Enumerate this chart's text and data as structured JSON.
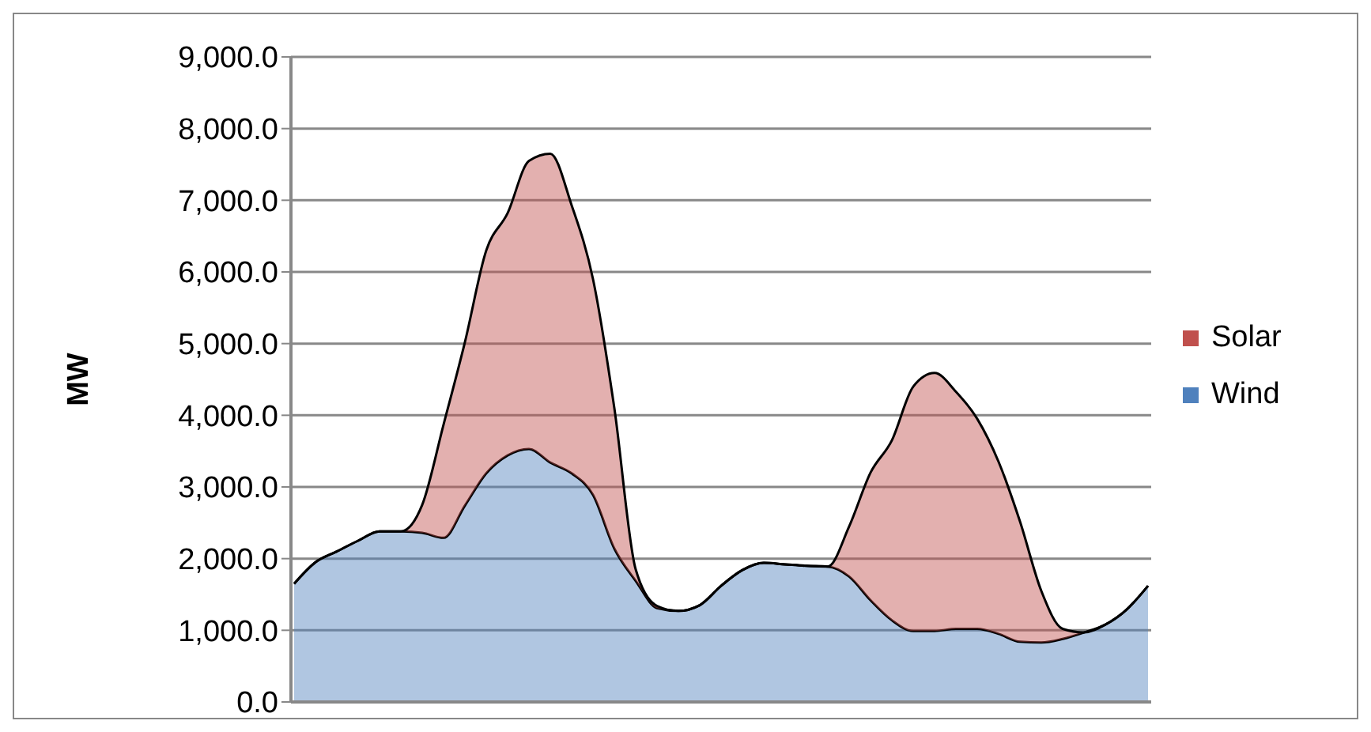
{
  "chart_data": {
    "type": "area",
    "stacked": true,
    "ylabel": "MW",
    "categories": [
      null,
      null,
      null,
      null,
      null,
      null,
      null,
      null,
      null,
      null,
      null,
      null,
      null,
      null,
      null,
      null,
      null,
      null,
      null,
      null,
      null,
      null,
      null,
      null,
      null,
      null,
      null,
      null,
      null,
      null,
      null,
      null,
      null,
      null,
      null,
      null,
      null,
      null,
      null,
      null,
      null
    ],
    "series": [
      {
        "name": "Wind",
        "color": "#4f81bd",
        "values": [
          1650,
          1950,
          2100,
          2250,
          2380,
          2380,
          2360,
          2290,
          2740,
          3190,
          3440,
          3530,
          3340,
          3190,
          2890,
          2140,
          1690,
          1310,
          1270,
          1350,
          1620,
          1840,
          1940,
          1920,
          1900,
          1890,
          1750,
          1420,
          1140,
          990,
          990,
          1020,
          1020,
          950,
          840,
          830,
          880,
          970,
          1080,
          1290,
          1620
        ]
      },
      {
        "name": "Solar",
        "color": "#c0504d",
        "values": [
          0,
          0,
          0,
          0,
          0,
          0,
          390,
          1580,
          2280,
          3110,
          3380,
          4020,
          4310,
          3740,
          3010,
          1960,
          160,
          30,
          0,
          0,
          0,
          0,
          0,
          0,
          0,
          0,
          700,
          1780,
          2510,
          3410,
          3600,
          3310,
          2930,
          2400,
          1680,
          720,
          140,
          0,
          0,
          0,
          0
        ]
      }
    ],
    "ylim": [
      0,
      9000
    ],
    "yticks": [
      {
        "value": 0,
        "label": "0.0"
      },
      {
        "value": 1000,
        "label": "1,000.0"
      },
      {
        "value": 2000,
        "label": "2,000.0"
      },
      {
        "value": 3000,
        "label": "3,000.0"
      },
      {
        "value": 4000,
        "label": "4,000.0"
      },
      {
        "value": 5000,
        "label": "5,000.0"
      },
      {
        "value": 6000,
        "label": "6,000.0"
      },
      {
        "value": 7000,
        "label": "7,000.0"
      },
      {
        "value": 8000,
        "label": "8,000.0"
      },
      {
        "value": 9000,
        "label": "9,000.0"
      }
    ],
    "grid": "y",
    "legend": "right"
  }
}
